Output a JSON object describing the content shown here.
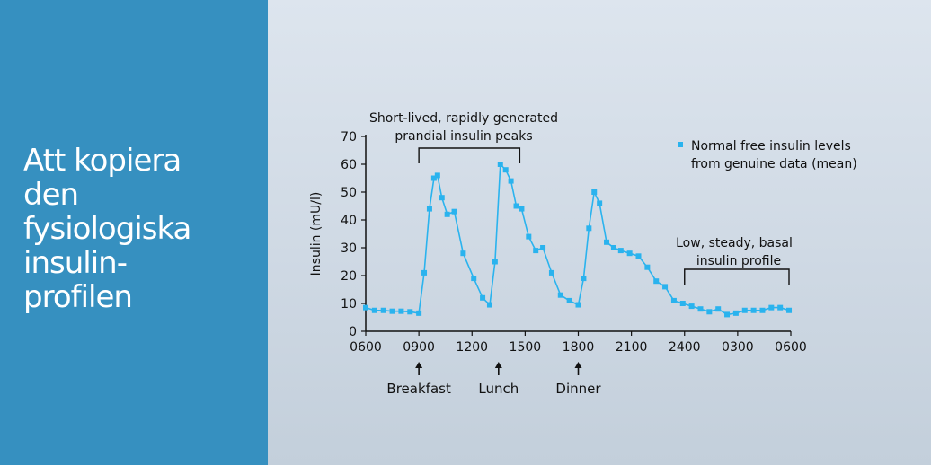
{
  "slide": {
    "title_lines": [
      "Att kopiera",
      "den",
      "fysiologiska",
      "insulin-",
      "profilen"
    ]
  },
  "colors": {
    "left_panel": "#3690c0",
    "series": "#2ab3ee",
    "axis": "#111111"
  },
  "chart_data": {
    "type": "line",
    "ylabel": "Insulin (mU/l)",
    "ylim": [
      0,
      70
    ],
    "yticks": [
      0,
      10,
      20,
      30,
      40,
      50,
      60,
      70
    ],
    "xlim": [
      6,
      30
    ],
    "xticks": [
      6,
      9,
      12,
      15,
      18,
      21,
      24,
      27,
      30
    ],
    "xtick_labels": [
      "0600",
      "0900",
      "1200",
      "1500",
      "1800",
      "2100",
      "2400",
      "0300",
      "0600"
    ],
    "marker": "square",
    "series": [
      {
        "name": "Normal free insulin levels from genuine data (mean)",
        "x": [
          6.0,
          6.5,
          7.0,
          7.5,
          8.0,
          8.5,
          9.0,
          9.3,
          9.6,
          9.85,
          10.05,
          10.3,
          10.6,
          11.0,
          11.5,
          12.1,
          12.6,
          13.0,
          13.3,
          13.6,
          13.9,
          14.2,
          14.5,
          14.8,
          15.2,
          15.6,
          16.0,
          16.5,
          17.0,
          17.5,
          18.0,
          18.3,
          18.6,
          18.9,
          19.2,
          19.6,
          20.0,
          20.4,
          20.9,
          21.4,
          21.9,
          22.4,
          22.9,
          23.4,
          23.9,
          24.4,
          24.9,
          25.4,
          25.9,
          26.4,
          26.9,
          27.4,
          27.9,
          28.4,
          28.9,
          29.4,
          29.9
        ],
        "y": [
          8.5,
          7.5,
          7.5,
          7.2,
          7.2,
          7.0,
          6.5,
          21,
          44,
          55,
          56,
          48,
          42,
          43,
          28,
          19,
          12,
          9.5,
          25,
          60,
          58,
          54,
          45,
          44,
          34,
          29,
          30,
          21,
          13,
          11,
          9.5,
          19,
          37,
          50,
          46,
          32,
          30,
          29,
          28,
          27,
          23,
          18,
          16,
          11,
          10,
          9,
          8,
          7,
          8,
          6,
          6.5,
          7.5,
          7.5,
          7.5,
          8.5,
          8.5,
          7.5
        ]
      }
    ],
    "legend": {
      "position": "top-right",
      "lines": [
        "Normal free insulin levels",
        "from genuine data (mean)"
      ]
    },
    "annotations": {
      "peaks_lines": [
        "Short-lived, rapidly generated",
        "prandial insulin peaks"
      ],
      "peaks_range": [
        9,
        15
      ],
      "basal_lines": [
        "Low, steady, basal",
        "insulin profile"
      ],
      "basal_range": [
        24,
        30
      ],
      "meals": [
        {
          "label": "Breakfast",
          "x": 9
        },
        {
          "label": "Lunch",
          "x": 13.5
        },
        {
          "label": "Dinner",
          "x": 18
        }
      ]
    }
  }
}
